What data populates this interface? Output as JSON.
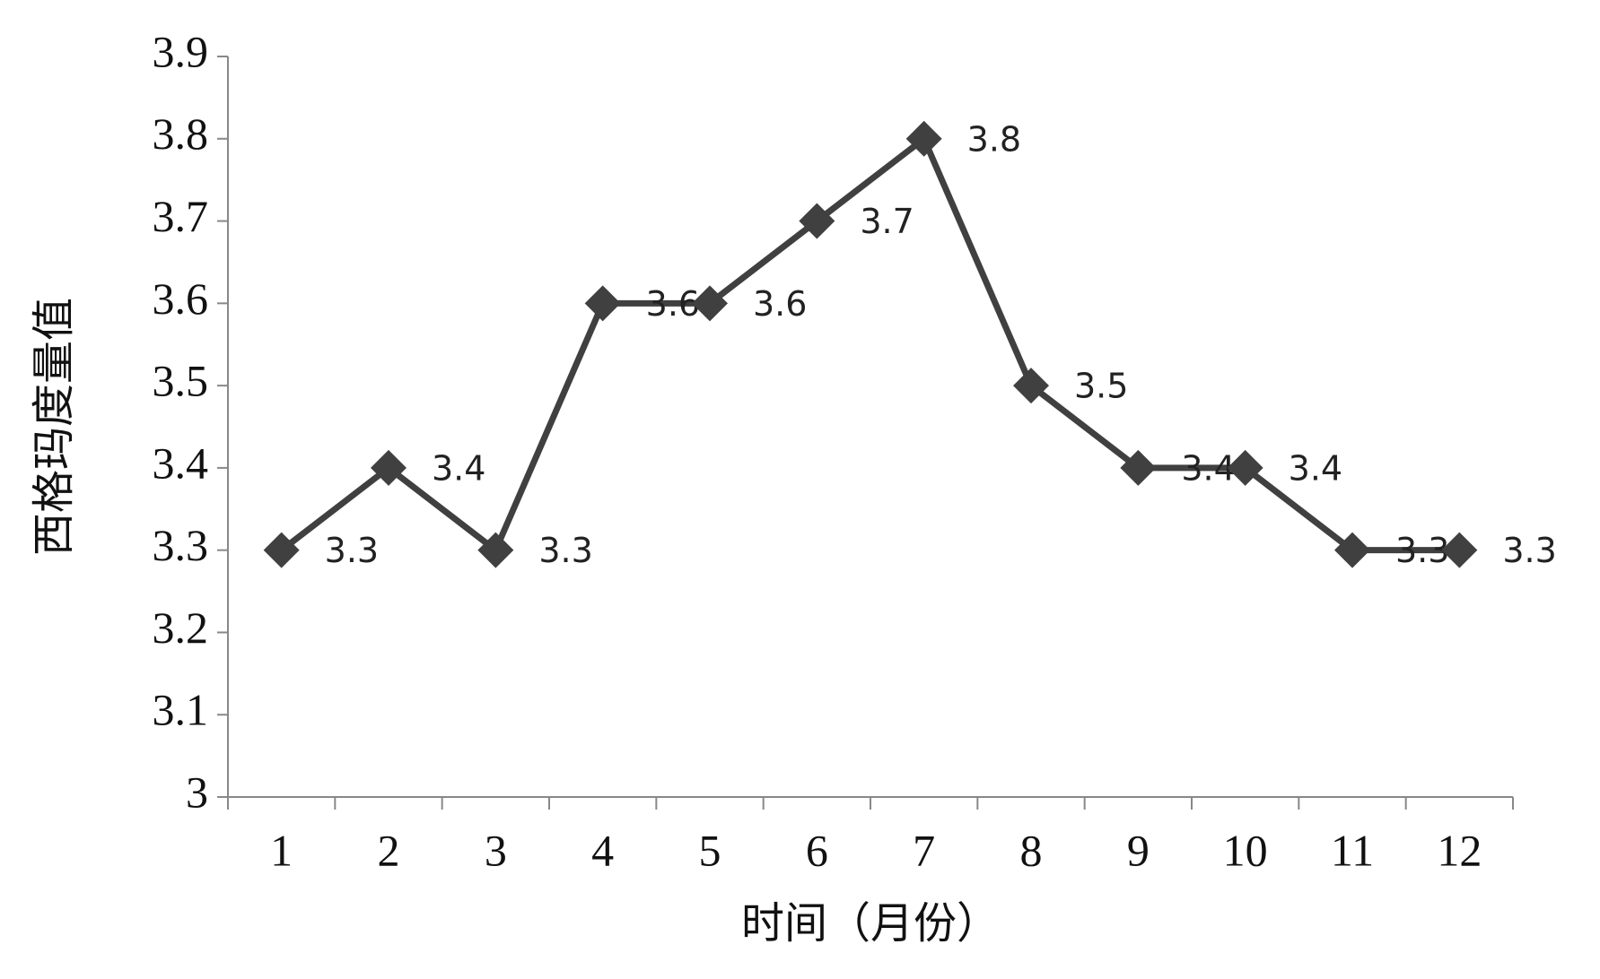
{
  "chart_data": {
    "type": "line",
    "x_label": "时间（月份）",
    "y_label": "西格玛度量值",
    "categories": [
      "1",
      "2",
      "3",
      "4",
      "5",
      "6",
      "7",
      "8",
      "9",
      "10",
      "11",
      "12"
    ],
    "series": [
      {
        "color": "#404040",
        "values": [
          3.3,
          3.4,
          3.3,
          3.6,
          3.6,
          3.7,
          3.8,
          3.5,
          3.4,
          3.4,
          3.3,
          3.3
        ]
      }
    ],
    "ylim": [
      3,
      3.9
    ],
    "yticks": [
      3,
      3.1,
      3.2,
      3.3,
      3.4,
      3.5,
      3.6,
      3.7,
      3.8,
      3.9
    ],
    "grid": false
  }
}
